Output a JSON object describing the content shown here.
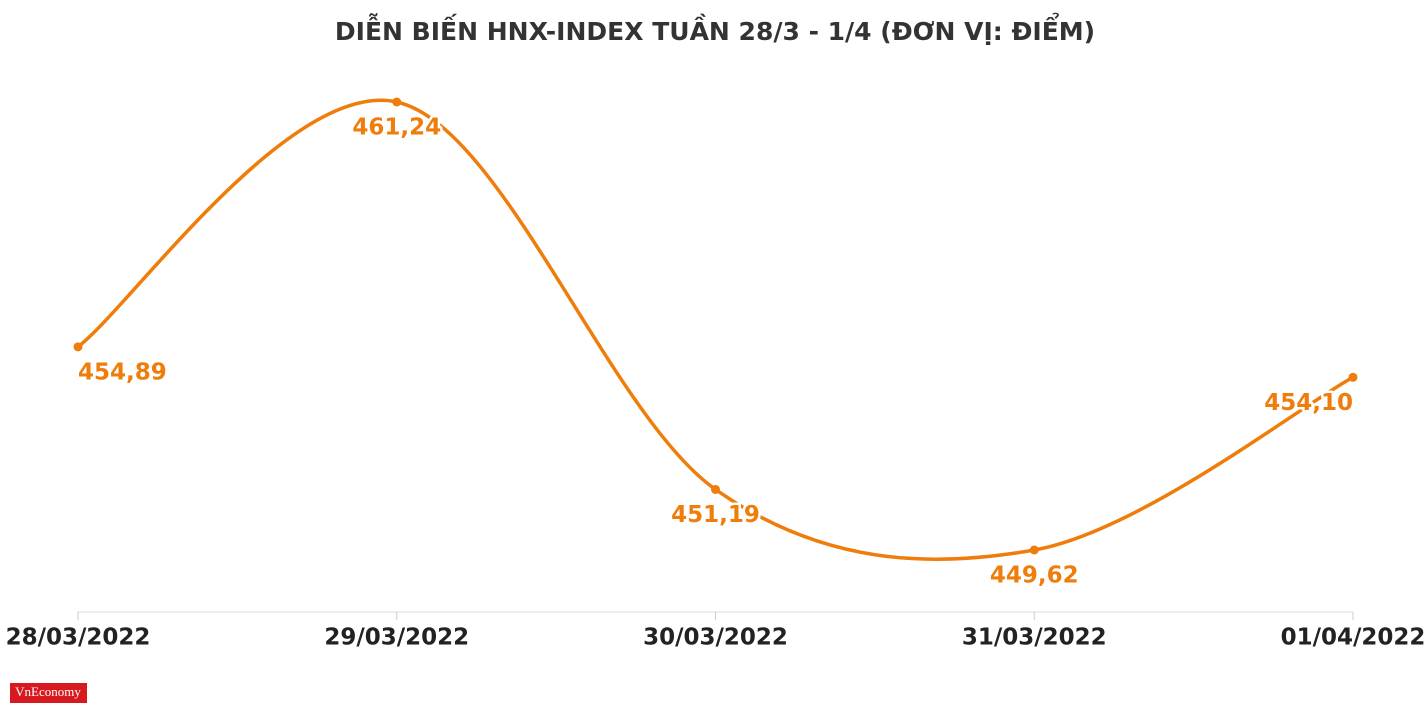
{
  "chart_data": {
    "type": "line",
    "title": "DIỄN BIẾN HNX-INDEX TUẦN 28/3 - 1/4 (ĐƠN VỊ: ĐIỂM)",
    "categories": [
      "28/03/2022",
      "29/03/2022",
      "30/03/2022",
      "31/03/2022",
      "01/04/2022"
    ],
    "values": [
      454.89,
      461.24,
      451.19,
      449.62,
      454.1
    ],
    "value_labels": [
      "454,89",
      "461,24",
      "451,19",
      "449,62",
      "454,10"
    ],
    "color": "#ef7d0b",
    "grid": false
  },
  "logo": "VnEconomy"
}
